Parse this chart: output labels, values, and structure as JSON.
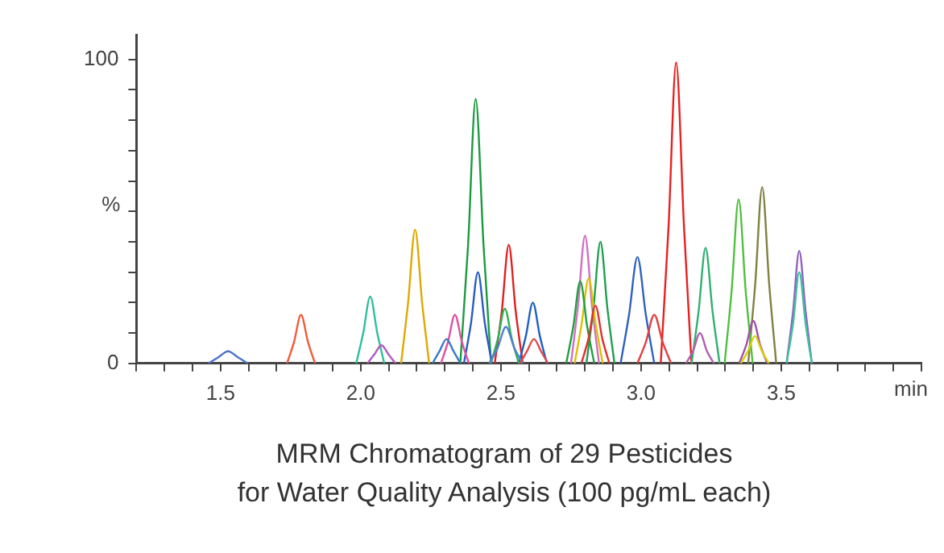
{
  "chart_data": {
    "type": "line",
    "title": "MRM Chromatogram of 29 Pesticides\nfor Water Quality Analysis (100 pg/mL each)",
    "xlabel": "min",
    "ylabel": "%",
    "xlim": [
      1.2,
      4.0
    ],
    "ylim": [
      0,
      108
    ],
    "xticks": [
      {
        "value": 1.2,
        "label": null
      },
      {
        "value": 1.3,
        "label": null
      },
      {
        "value": 1.4,
        "label": null
      },
      1.5,
      {
        "value": 1.6,
        "label": null
      },
      {
        "value": 1.7,
        "label": null
      },
      {
        "value": 1.8,
        "label": null
      },
      {
        "value": 1.9,
        "label": null
      },
      {
        "value": 2,
        "label": "2.0"
      },
      {
        "value": 2.1,
        "label": null
      },
      {
        "value": 2.2,
        "label": null
      },
      {
        "value": 2.3,
        "label": null
      },
      {
        "value": 2.4,
        "label": null
      },
      2.5,
      {
        "value": 2.6,
        "label": null
      },
      {
        "value": 2.7,
        "label": null
      },
      {
        "value": 2.8,
        "label": null
      },
      {
        "value": 2.9,
        "label": null
      },
      {
        "value": 3,
        "label": "3.0"
      },
      {
        "value": 3.1,
        "label": null
      },
      {
        "value": 3.2,
        "label": null
      },
      {
        "value": 3.3,
        "label": null
      },
      {
        "value": 3.4,
        "label": null
      },
      3.5,
      {
        "value": 3.6,
        "label": null
      },
      {
        "value": 3.7,
        "label": null
      },
      {
        "value": 3.8,
        "label": null
      },
      {
        "value": 3.9,
        "label": null
      },
      {
        "value": 4,
        "label": null
      }
    ],
    "yticks": [
      0,
      {
        "value": 10,
        "label": null
      },
      {
        "value": 20,
        "label": null
      },
      {
        "value": 30,
        "label": null
      },
      {
        "value": 40,
        "label": null
      },
      {
        "value": 50,
        "label": null
      },
      {
        "value": 60,
        "label": null
      },
      {
        "value": 70,
        "label": null
      },
      {
        "value": 80,
        "label": null
      },
      {
        "value": 90,
        "label": null
      },
      100
    ],
    "grid": false,
    "legend": false,
    "marker": "none",
    "line_style": "solid",
    "series": [
      {
        "color": "#4a72c8",
        "x": [
          1.457,
          1.492,
          1.527,
          1.562,
          1.597
        ],
        "values": [
          0,
          2,
          4,
          2,
          0
        ]
      },
      {
        "color": "#f05a3a",
        "x": [
          1.737,
          1.762,
          1.787,
          1.812,
          1.837
        ],
        "values": [
          0,
          7,
          16,
          7,
          0
        ]
      },
      {
        "color": "#2fbf9a",
        "x": [
          1.984,
          2.009,
          2.034,
          2.059,
          2.084
        ],
        "values": [
          0,
          10,
          22,
          10,
          0
        ]
      },
      {
        "color": "#b05ac0",
        "x": [
          2.024,
          2.049,
          2.074,
          2.099,
          2.124
        ],
        "values": [
          0,
          3,
          6,
          3,
          0
        ]
      },
      {
        "color": "#e0a800",
        "x": [
          2.144,
          2.169,
          2.194,
          2.219,
          2.244
        ],
        "values": [
          0,
          20,
          44,
          20,
          0
        ]
      },
      {
        "color": "#3a78c8",
        "x": [
          2.256,
          2.281,
          2.306,
          2.331,
          2.356
        ],
        "values": [
          0,
          4,
          8,
          4,
          0
        ]
      },
      {
        "color": "#e050a0",
        "x": [
          2.286,
          2.311,
          2.336,
          2.361,
          2.386
        ],
        "values": [
          0,
          7,
          16,
          7,
          0
        ]
      },
      {
        "color": "#1a9a40",
        "x": [
          2.355,
          2.383,
          2.41,
          2.438,
          2.465
        ],
        "values": [
          0,
          39,
          87,
          39,
          0
        ]
      },
      {
        "color": "#2a5cc0",
        "x": [
          2.368,
          2.393,
          2.418,
          2.443,
          2.468
        ],
        "values": [
          0,
          13,
          30,
          13,
          0
        ]
      },
      {
        "color": "#e02020",
        "x": [
          2.478,
          2.503,
          2.528,
          2.553,
          2.578
        ],
        "values": [
          0,
          17,
          39,
          17,
          0
        ]
      },
      {
        "color": "#30b050",
        "x": [
          2.464,
          2.489,
          2.514,
          2.539,
          2.564
        ],
        "values": [
          0,
          8,
          18,
          8,
          0
        ]
      },
      {
        "color": "#5080d0",
        "x": [
          2.458,
          2.488,
          2.518,
          2.548,
          2.578
        ],
        "values": [
          0,
          5,
          12,
          5,
          0
        ]
      },
      {
        "color": "#2060c0",
        "x": [
          2.564,
          2.589,
          2.614,
          2.639,
          2.664
        ],
        "values": [
          0,
          9,
          20,
          9,
          0
        ]
      },
      {
        "color": "#e04848",
        "x": [
          2.568,
          2.593,
          2.618,
          2.643,
          2.668
        ],
        "values": [
          0,
          4,
          8,
          4,
          0
        ]
      },
      {
        "color": "#20a040",
        "x": [
          2.733,
          2.758,
          2.783,
          2.808,
          2.833
        ],
        "values": [
          0,
          12,
          27,
          12,
          0
        ]
      },
      {
        "color": "#d070c0",
        "x": [
          2.75,
          2.775,
          2.8,
          2.825,
          2.85
        ],
        "values": [
          0,
          19,
          42,
          19,
          0
        ]
      },
      {
        "color": "#e0c000",
        "x": [
          2.763,
          2.788,
          2.813,
          2.838,
          2.863
        ],
        "values": [
          0,
          13,
          28,
          13,
          0
        ]
      },
      {
        "color": "#e03030",
        "x": [
          2.787,
          2.812,
          2.837,
          2.862,
          2.887
        ],
        "values": [
          0,
          8,
          19,
          8,
          0
        ]
      },
      {
        "color": "#20a050",
        "x": [
          2.805,
          2.83,
          2.855,
          2.88,
          2.905
        ],
        "values": [
          0,
          18,
          40,
          18,
          0
        ]
      },
      {
        "color": "#3060c0",
        "x": [
          2.927,
          2.957,
          2.987,
          3.017,
          3.047
        ],
        "values": [
          0,
          16,
          35,
          16,
          0
        ]
      },
      {
        "color": "#e04040",
        "x": [
          2.987,
          3.017,
          3.047,
          3.077,
          3.107
        ],
        "values": [
          0,
          7,
          16,
          7,
          0
        ]
      },
      {
        "color": "#e82020",
        "x": [
          3.07,
          3.098,
          3.125,
          3.153,
          3.18
        ],
        "values": [
          0,
          45,
          99,
          45,
          0
        ]
      },
      {
        "color": "#b060b0",
        "x": [
          3.16,
          3.185,
          3.21,
          3.235,
          3.26
        ],
        "values": [
          0,
          4,
          10,
          4,
          0
        ]
      },
      {
        "color": "#30b070",
        "x": [
          3.18,
          3.205,
          3.23,
          3.255,
          3.28
        ],
        "values": [
          0,
          17,
          38,
          17,
          0
        ]
      },
      {
        "color": "#50c040",
        "x": [
          3.298,
          3.323,
          3.348,
          3.373,
          3.398
        ],
        "values": [
          0,
          24,
          54,
          24,
          0
        ]
      },
      {
        "color": "#a050b0",
        "x": [
          3.35,
          3.375,
          3.4,
          3.425,
          3.45
        ],
        "values": [
          0,
          6,
          14,
          6,
          0
        ]
      },
      {
        "color": "#d8d000",
        "x": [
          3.356,
          3.381,
          3.406,
          3.431,
          3.456
        ],
        "values": [
          0,
          4,
          9,
          4,
          0
        ]
      },
      {
        "color": "#808040",
        "x": [
          3.382,
          3.407,
          3.432,
          3.457,
          3.482
        ],
        "values": [
          0,
          26,
          58,
          26,
          0
        ]
      },
      {
        "color": "#9060c0",
        "x": [
          3.519,
          3.542,
          3.564,
          3.587,
          3.609
        ],
        "values": [
          0,
          17,
          37,
          17,
          0
        ]
      },
      {
        "color": "#40c0a0",
        "x": [
          3.519,
          3.542,
          3.564,
          3.587,
          3.609
        ],
        "values": [
          0,
          13,
          30,
          13,
          0
        ]
      }
    ]
  }
}
